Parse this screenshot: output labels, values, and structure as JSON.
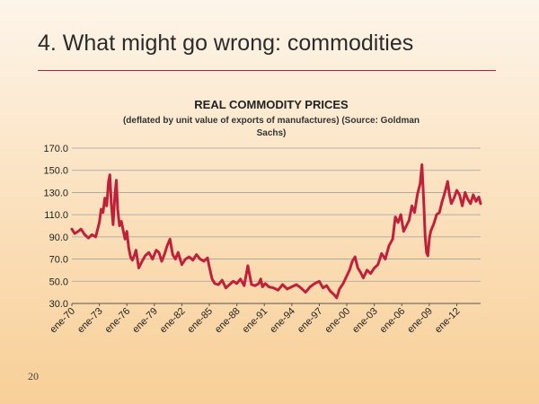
{
  "slide": {
    "title": "4. What might go wrong: commodities",
    "page_number": "20"
  },
  "colors": {
    "accent_rule": "#a6263a",
    "series_line": "#c0213a",
    "grid": "#a0a0a0"
  },
  "chart_data": {
    "type": "line",
    "title": "REAL COMMODITY  PRICES",
    "subtitle_lines": [
      "(deflated by unit value of exports of manufactures) (Source: Goldman",
      "Sachs)"
    ],
    "xlabel": "",
    "ylabel": "",
    "ylim": [
      30,
      170
    ],
    "y_ticks": [
      30,
      50,
      70,
      90,
      110,
      130,
      150,
      170
    ],
    "y_tick_labels": [
      "30.0",
      "50.0",
      "70.0",
      "90.0",
      "110.0",
      "130.0",
      "150.0",
      "170.0"
    ],
    "x_range": [
      1970,
      2014.6
    ],
    "x_ticks": [
      1970,
      1973,
      1976,
      1979,
      1982,
      1985,
      1988,
      1991,
      1994,
      1997,
      2000,
      2003,
      2006,
      2009,
      2012
    ],
    "x_tick_labels": [
      "ene-70",
      "ene-73",
      "ene-76",
      "ene-79",
      "ene-82",
      "ene-85",
      "ene-88",
      "ene-91",
      "ene-94",
      "ene-97",
      "ene-00",
      "ene-03",
      "ene-06",
      "ene-09",
      "ene-12"
    ],
    "grid": true,
    "legend": "none",
    "series": [
      {
        "x": [
          1970.0,
          1970.3,
          1970.7,
          1971.0,
          1971.4,
          1971.8,
          1972.2,
          1972.6,
          1973.0,
          1973.2,
          1973.4,
          1973.6,
          1973.8,
          1974.0,
          1974.15,
          1974.3,
          1974.5,
          1974.7,
          1974.85,
          1975.0,
          1975.2,
          1975.4,
          1975.6,
          1975.8,
          1976.0,
          1976.2,
          1976.4,
          1976.6,
          1976.8,
          1977.0,
          1977.3,
          1977.6,
          1978.0,
          1978.4,
          1978.8,
          1979.2,
          1979.5,
          1979.8,
          1980.1,
          1980.4,
          1980.7,
          1981.0,
          1981.3,
          1981.6,
          1982.0,
          1982.4,
          1982.8,
          1983.2,
          1983.6,
          1984.0,
          1984.4,
          1984.8,
          1985.0,
          1985.3,
          1985.6,
          1986.0,
          1986.4,
          1986.8,
          1987.2,
          1987.6,
          1988.0,
          1988.4,
          1988.8,
          1989.2,
          1989.6,
          1990.0,
          1990.4,
          1990.6,
          1990.8,
          1991.1,
          1991.5,
          1992.0,
          1992.5,
          1993.0,
          1993.5,
          1994.0,
          1994.5,
          1995.0,
          1995.5,
          1996.0,
          1996.5,
          1997.0,
          1997.4,
          1997.8,
          1998.2,
          1998.6,
          1998.9,
          1999.2,
          1999.6,
          2000.0,
          2000.3,
          2000.6,
          2000.9,
          2001.2,
          2001.5,
          2001.8,
          2002.2,
          2002.6,
          2003.0,
          2003.4,
          2003.8,
          2004.2,
          2004.6,
          2005.0,
          2005.3,
          2005.6,
          2005.9,
          2006.2,
          2006.5,
          2006.8,
          2007.1,
          2007.4,
          2007.7,
          2008.0,
          2008.2,
          2008.4,
          2008.55,
          2008.7,
          2008.85,
          2009.0,
          2009.15,
          2009.3,
          2009.5,
          2009.8,
          2010.1,
          2010.4,
          2010.7,
          2011.0,
          2011.2,
          2011.4,
          2011.7,
          2012.0,
          2012.3,
          2012.6,
          2012.9,
          2013.2,
          2013.5,
          2013.8,
          2014.1,
          2014.4,
          2014.6
        ],
        "values": [
          97,
          93,
          95,
          97,
          92,
          89,
          92,
          90,
          103,
          115,
          112,
          125,
          118,
          140,
          146,
          120,
          101,
          128,
          141,
          115,
          100,
          104,
          96,
          88,
          95,
          80,
          72,
          69,
          73,
          78,
          62,
          67,
          73,
          76,
          70,
          78,
          76,
          68,
          74,
          82,
          88,
          74,
          70,
          76,
          65,
          70,
          72,
          69,
          74,
          70,
          68,
          71,
          63,
          52,
          48,
          47,
          51,
          44,
          47,
          50,
          48,
          52,
          46,
          64,
          47,
          46,
          48,
          52,
          45,
          48,
          45,
          44,
          42,
          47,
          43,
          45,
          47,
          44,
          40,
          45,
          48,
          50,
          44,
          46,
          41,
          38,
          35,
          43,
          48,
          55,
          60,
          68,
          72,
          62,
          58,
          53,
          60,
          57,
          62,
          65,
          75,
          70,
          82,
          88,
          108,
          103,
          110,
          95,
          100,
          105,
          118,
          112,
          128,
          138,
          155,
          122,
          90,
          76,
          73,
          88,
          95,
          98,
          102,
          110,
          112,
          122,
          130,
          140,
          128,
          120,
          125,
          132,
          128,
          118,
          130,
          124,
          120,
          128,
          122,
          126,
          120
        ]
      }
    ]
  }
}
